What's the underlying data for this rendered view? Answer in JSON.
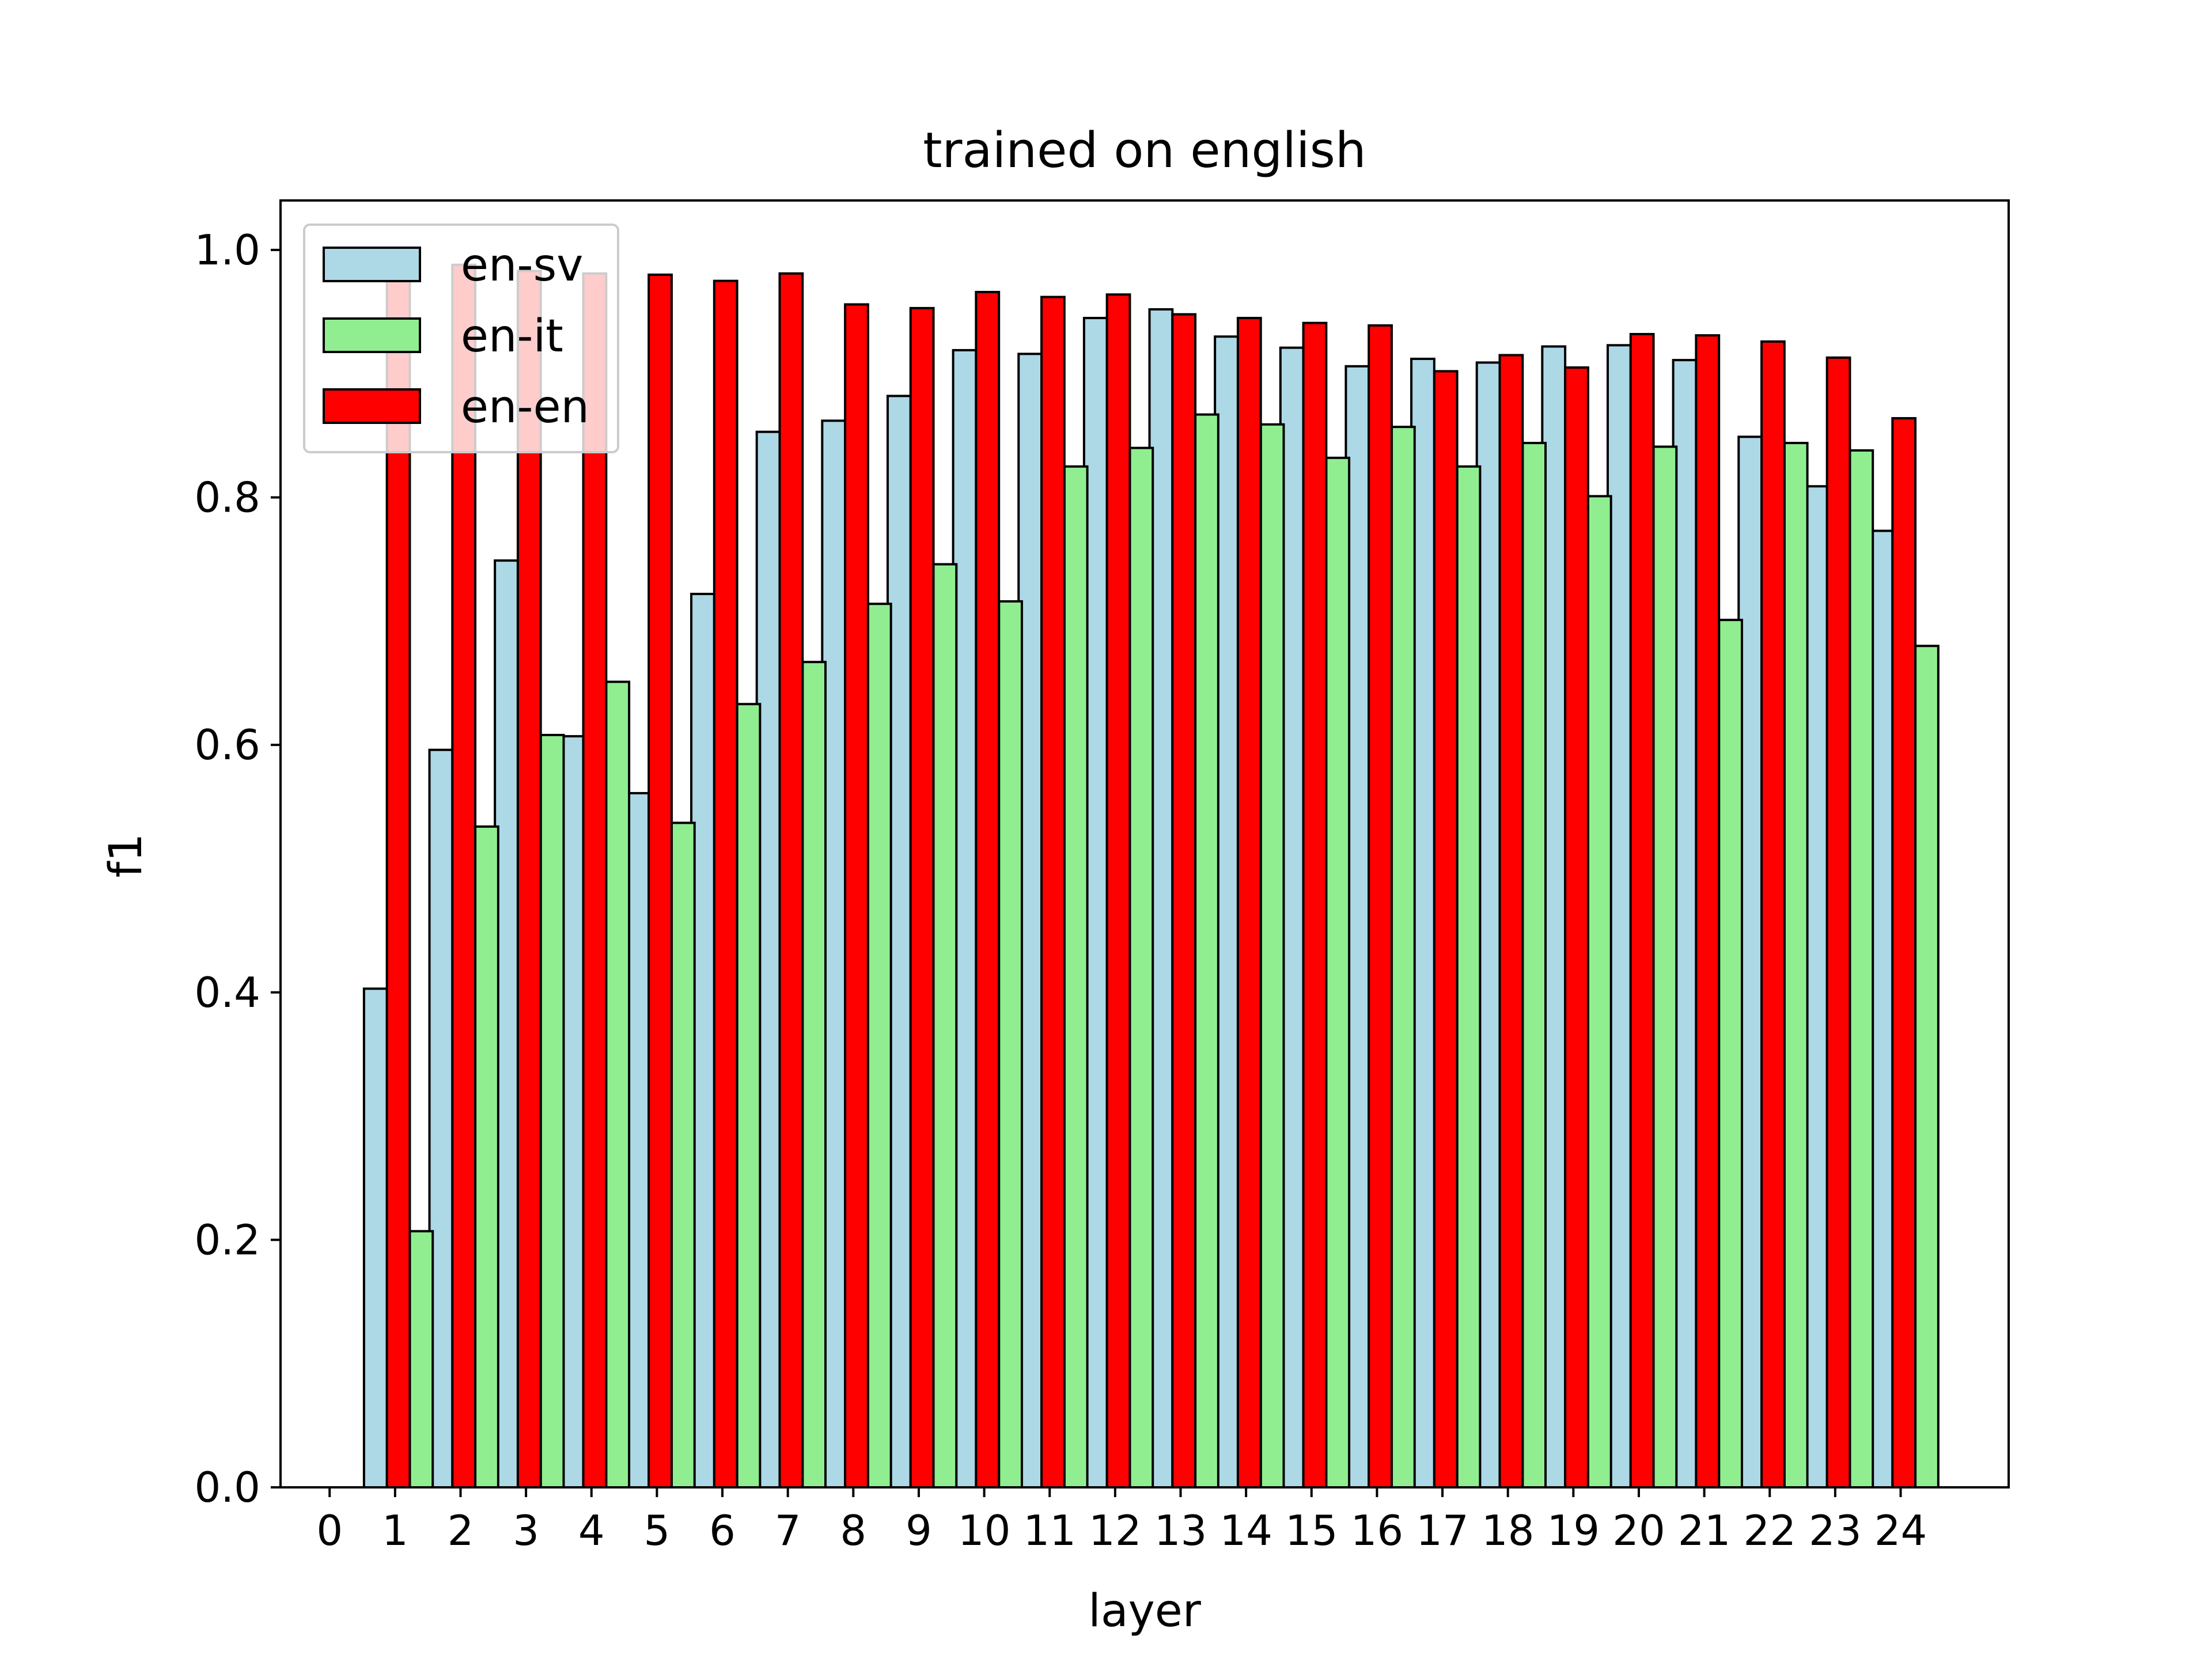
{
  "chart_data": {
    "type": "bar",
    "title": "trained on english",
    "xlabel": "layer",
    "ylabel": "f1",
    "x_ticks": [
      "0",
      "1",
      "2",
      "3",
      "4",
      "5",
      "6",
      "7",
      "8",
      "9",
      "10",
      "11",
      "12",
      "13",
      "14",
      "15",
      "16",
      "17",
      "18",
      "19",
      "20",
      "21",
      "22",
      "23",
      "24"
    ],
    "y_ticks": [
      "0.0",
      "0.2",
      "0.4",
      "0.6",
      "0.8",
      "1.0"
    ],
    "ylim": [
      0,
      1.04
    ],
    "xlim": [
      -0.75,
      25.65
    ],
    "legend_position": "upper-left",
    "grid": false,
    "series": [
      {
        "name": "en-sv",
        "color": "#add8e6",
        "x": [
          0.7,
          1.7,
          2.7,
          3.7,
          4.7,
          5.7,
          6.7,
          7.7,
          8.7,
          9.7,
          10.7,
          11.7,
          12.7,
          13.7,
          14.7,
          15.7,
          16.7,
          17.7,
          18.7,
          19.7,
          20.7,
          21.7,
          22.7,
          23.7
        ],
        "values": [
          0.403,
          0.596,
          0.749,
          0.607,
          0.561,
          0.722,
          0.853,
          0.862,
          0.882,
          0.919,
          0.916,
          0.945,
          0.952,
          0.93,
          0.921,
          0.906,
          0.912,
          0.909,
          0.922,
          0.923,
          0.911,
          0.849,
          0.809,
          0.773
        ]
      },
      {
        "name": "en-it",
        "color": "#90ee90",
        "x": [
          1.4,
          2.4,
          3.4,
          4.4,
          5.4,
          6.4,
          7.4,
          8.4,
          9.4,
          10.4,
          11.4,
          12.4,
          13.4,
          14.4,
          15.4,
          16.4,
          17.4,
          18.4,
          19.4,
          20.4,
          21.4,
          22.4,
          23.4,
          24.4
        ],
        "values": [
          0.207,
          0.534,
          0.608,
          0.651,
          0.537,
          0.633,
          0.667,
          0.714,
          0.746,
          0.716,
          0.825,
          0.84,
          0.867,
          0.859,
          0.832,
          0.857,
          0.825,
          0.844,
          0.801,
          0.841,
          0.701,
          0.844,
          0.838,
          0.68
        ]
      },
      {
        "name": "en-en",
        "color": "#ff0000",
        "x": [
          1.05,
          2.05,
          3.05,
          4.05,
          5.05,
          6.05,
          7.05,
          8.05,
          9.05,
          10.05,
          11.05,
          12.05,
          13.05,
          14.05,
          15.05,
          16.05,
          17.05,
          18.05,
          19.05,
          20.05,
          21.05,
          22.05,
          23.05,
          24.05
        ],
        "values": [
          0.985,
          0.988,
          0.983,
          0.981,
          0.98,
          0.975,
          0.981,
          0.956,
          0.953,
          0.966,
          0.962,
          0.964,
          0.948,
          0.945,
          0.941,
          0.939,
          0.902,
          0.915,
          0.905,
          0.932,
          0.931,
          0.926,
          0.913,
          0.864
        ]
      }
    ]
  }
}
